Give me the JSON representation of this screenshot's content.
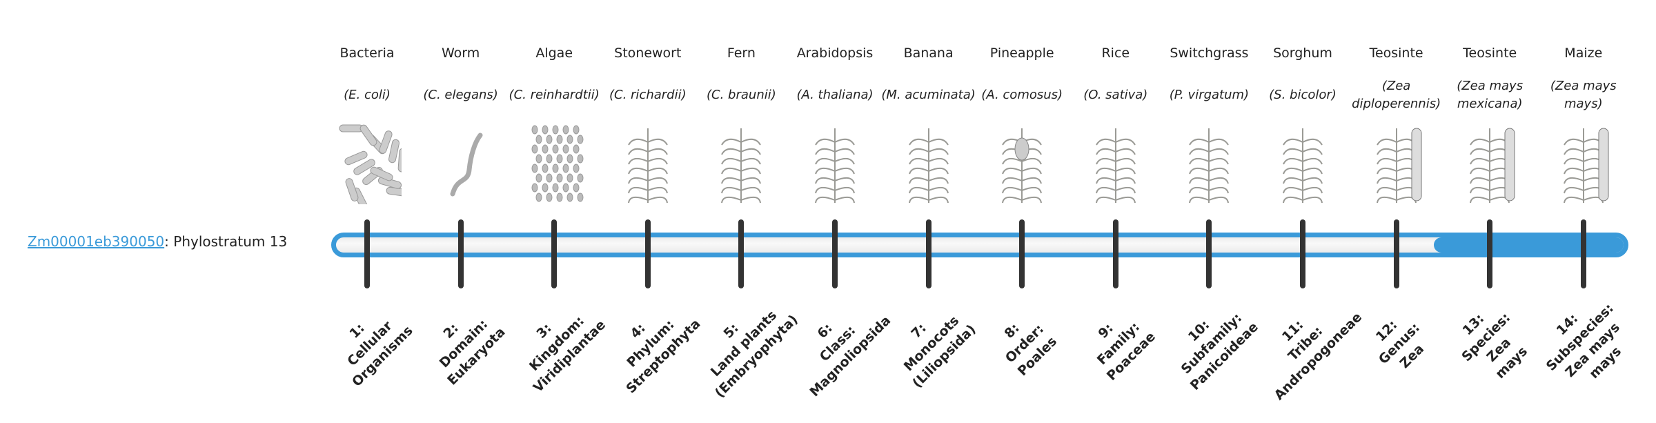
{
  "gene": {
    "id": "Zm00001eb390050",
    "suffix": ": Phylostratum 13"
  },
  "progress": {
    "current_stratum": 13,
    "total_strata": 14,
    "color": "#3a9ad9"
  },
  "strata": [
    {
      "common": "Bacteria",
      "species": "(E. coli)",
      "icon": "bacteria-icon",
      "label": [
        "1:",
        "Cellular",
        "Organisms"
      ]
    },
    {
      "common": "Worm",
      "species": "(C. elegans)",
      "icon": "worm-icon",
      "label": [
        "2:",
        "Domain:",
        "Eukaryota"
      ]
    },
    {
      "common": "Algae",
      "species": "(C. reinhardtii)",
      "icon": "algae-icon",
      "label": [
        "3:",
        "Kingdom:",
        "Viridiplantae"
      ]
    },
    {
      "common": "Stonewort",
      "species": "(C. richardii)",
      "icon": "stonewort-icon",
      "label": [
        "4:",
        "Phylum:",
        "Streptophyta"
      ]
    },
    {
      "common": "Fern",
      "species": "(C. braunii)",
      "icon": "fern-icon",
      "label": [
        "5:",
        "Land plants",
        "(Embryophyta)"
      ]
    },
    {
      "common": "Arabidopsis",
      "species": "(A. thaliana)",
      "icon": "arabidopsis-icon",
      "label": [
        "6:",
        "Class:",
        "Magnoliopsida"
      ]
    },
    {
      "common": "Banana",
      "species": "(M. acuminata)",
      "icon": "banana-plant-icon",
      "label": [
        "7:",
        "Monocots",
        "(Liliopsida)"
      ]
    },
    {
      "common": "Pineapple",
      "species": "(A. comosus)",
      "icon": "pineapple-icon",
      "label": [
        "8:",
        "Order:",
        "Poales"
      ]
    },
    {
      "common": "Rice",
      "species": "(O. sativa)",
      "icon": "rice-icon",
      "label": [
        "9:",
        "Family:",
        "Poaceae"
      ]
    },
    {
      "common": "Switchgrass",
      "species": "(P. virgatum)",
      "icon": "switchgrass-icon",
      "label": [
        "10:",
        "Subfamily:",
        "Panicoideae"
      ]
    },
    {
      "common": "Sorghum",
      "species": "(S. bicolor)",
      "icon": "sorghum-icon",
      "label": [
        "11:",
        "Tribe:",
        "Andropogoneae"
      ]
    },
    {
      "common": "Teosinte",
      "species": "(Zea diploperennis)",
      "icon": "teosinte-icon",
      "label": [
        "12:",
        "Genus:",
        "Zea"
      ]
    },
    {
      "common": "Teosinte",
      "species": "(Zea mays mexicana)",
      "icon": "teosinte-icon",
      "label": [
        "13:",
        "Species:",
        "Zea",
        "mays"
      ]
    },
    {
      "common": "Maize",
      "species": "(Zea mays mays)",
      "icon": "maize-icon",
      "label": [
        "14:",
        "Subspecies:",
        "Zea mays",
        "mays"
      ]
    }
  ]
}
